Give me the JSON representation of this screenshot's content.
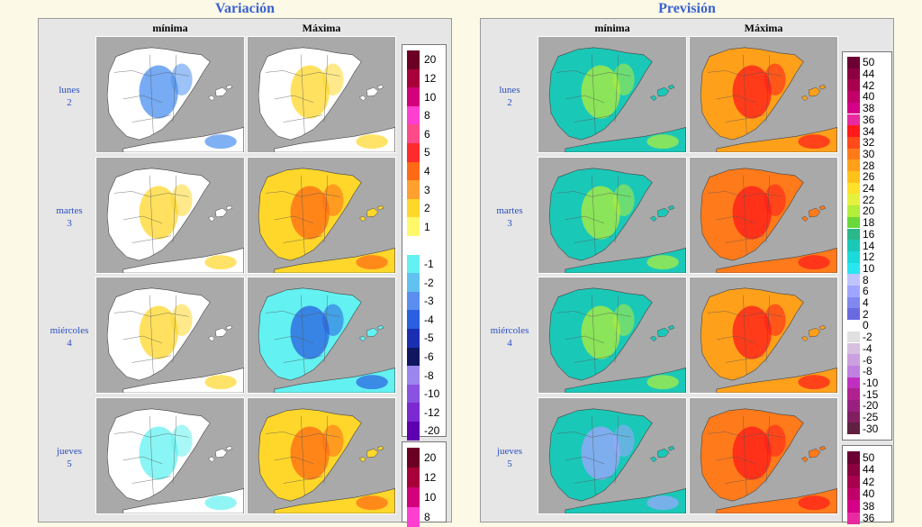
{
  "panels": {
    "variacion": {
      "title": "Variación"
    },
    "prevision": {
      "title": "Previsión"
    }
  },
  "columns": {
    "min": "mínima",
    "max": "Máxima"
  },
  "days": [
    {
      "name": "lunes",
      "num": "2"
    },
    {
      "name": "martes",
      "num": "3"
    },
    {
      "name": "miércoles",
      "num": "4"
    },
    {
      "name": "jueves",
      "num": "5"
    }
  ],
  "legends": {
    "variacion_main": {
      "labels": [
        "20",
        "12",
        "10",
        "8",
        "6",
        "5",
        "4",
        "3",
        "2",
        "1",
        "",
        "-1",
        "-2",
        "-3",
        "-4",
        "-5",
        "-6",
        "-8",
        "-10",
        "-12",
        "-20"
      ],
      "colors": [
        "#6b0024",
        "#a8003a",
        "#d2007a",
        "#ff3fd0",
        "#ff4a8a",
        "#ff2a2a",
        "#ff6a14",
        "#ffa030",
        "#ffd72a",
        "#fff86a",
        "#ffffff",
        "#63f1f1",
        "#61c2f0",
        "#5a8ff0",
        "#2a5fe0",
        "#1a2fb0",
        "#101660",
        "#9b86ee",
        "#8a52e0",
        "#7a2ad0",
        "#5e00b0"
      ]
    },
    "variacion_lower": {
      "labels": [
        "20",
        "12",
        "10",
        "8"
      ],
      "colors": [
        "#6b0024",
        "#a8003a",
        "#d2007a",
        "#ff3fd0"
      ]
    },
    "prevision_main": {
      "labels": [
        "50",
        "44",
        "42",
        "40",
        "38",
        "36",
        "34",
        "32",
        "30",
        "28",
        "26",
        "24",
        "22",
        "20",
        "18",
        "16",
        "14",
        "12",
        "10",
        "8",
        "6",
        "4",
        "2",
        "0",
        "-2",
        "-4",
        "-6",
        "-8",
        "-10",
        "-15",
        "-20",
        "-25",
        "-30"
      ],
      "colors": [
        "#6b0032",
        "#8a0040",
        "#a8004f",
        "#c2006a",
        "#d60088",
        "#e82aa0",
        "#ff1a1a",
        "#ff4a1a",
        "#ff7a1a",
        "#ffa01a",
        "#ffc21a",
        "#ffe02a",
        "#e6f040",
        "#b2ee3a",
        "#6ad83a",
        "#2ab88a",
        "#1ac8b8",
        "#1adada",
        "#2ae6f0",
        "#bfc4ff",
        "#a0a6ff",
        "#8088f0",
        "#6a6ae0",
        "#ffffff",
        "#e0e0e0",
        "#d8c0e0",
        "#cca0e0",
        "#c080e0",
        "#c030c0",
        "#b02090",
        "#9a2080",
        "#802060",
        "#602040"
      ]
    },
    "prevision_lower": {
      "labels": [
        "50",
        "44",
        "42",
        "40",
        "38",
        "36"
      ],
      "colors": [
        "#6b0032",
        "#8a0040",
        "#a8004f",
        "#c2006a",
        "#d60088",
        "#e82aa0"
      ]
    }
  },
  "colors": {
    "title": "#3a62d0",
    "day_label": "#2a4ec0",
    "sea": "#a9a9a9",
    "background": "#fcf9e6"
  }
}
